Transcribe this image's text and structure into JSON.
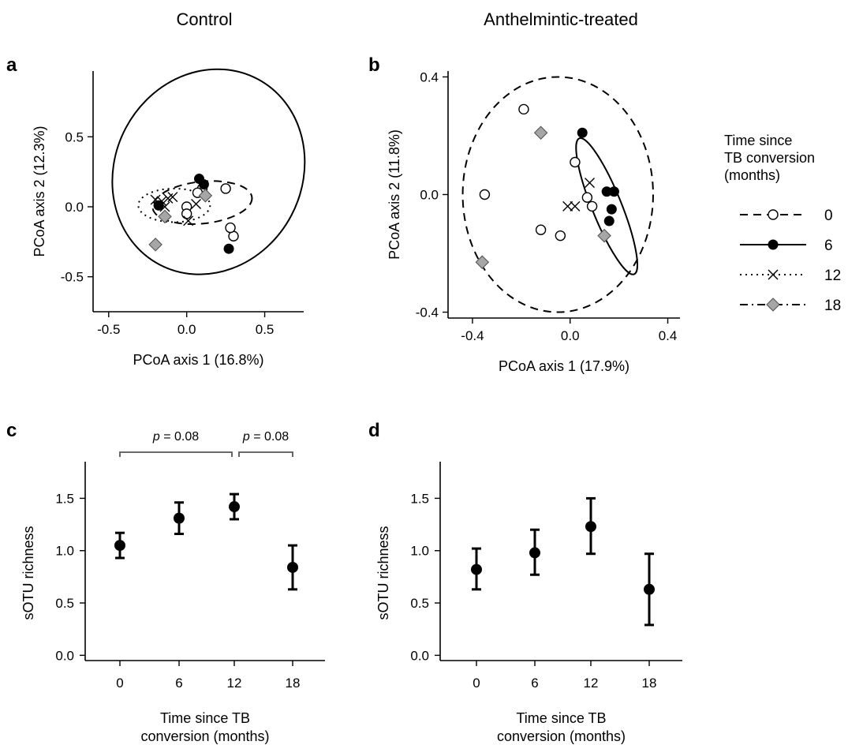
{
  "column_titles": [
    "Control",
    "Anthelmintic-treated"
  ],
  "legend": {
    "title_lines": [
      "Time since",
      "TB conversion",
      "(months)"
    ],
    "entries": [
      {
        "label": "0",
        "marker": "open-circle",
        "line": "dashed"
      },
      {
        "label": "6",
        "marker": "filled-circle",
        "line": "solid"
      },
      {
        "label": "12",
        "marker": "cross",
        "line": "dotted"
      },
      {
        "label": "18",
        "marker": "gray-diamond",
        "line": "dash-dot"
      }
    ]
  },
  "colors": {
    "ink": "#000000",
    "diamond_fill": "#a6a6a6",
    "diamond_stroke": "#555555",
    "open_fill": "#ffffff",
    "bracket": "#555555"
  },
  "chart_data": [
    {
      "panel": "a",
      "type": "scatter",
      "xlabel": "PCoA axis 1 (16.8%)",
      "ylabel": "PCoA axis 2 (12.3%)",
      "xlim": [
        -0.6,
        0.75
      ],
      "ylim": [
        -0.75,
        0.97
      ],
      "xticks": [
        -0.5,
        0.0,
        0.5
      ],
      "xtick_labels": [
        "-0.5",
        "0.0",
        "0.5"
      ],
      "yticks": [
        -0.5,
        0.0,
        0.5
      ],
      "ytick_labels": [
        "-0.5",
        "0.0",
        "0.5"
      ],
      "series": [
        {
          "name": "0",
          "marker": "open-circle",
          "points": [
            [
              0.25,
              0.13
            ],
            [
              0.1,
              0.13
            ],
            [
              0.07,
              0.1
            ],
            [
              0.0,
              0.0
            ],
            [
              0.0,
              -0.05
            ],
            [
              0.3,
              -0.21
            ],
            [
              0.28,
              -0.15
            ]
          ]
        },
        {
          "name": "6",
          "marker": "filled-circle",
          "points": [
            [
              0.08,
              0.2
            ],
            [
              0.11,
              0.16
            ],
            [
              -0.18,
              0.01
            ],
            [
              0.27,
              -0.3
            ]
          ]
        },
        {
          "name": "12",
          "marker": "cross",
          "points": [
            [
              -0.2,
              0.05
            ],
            [
              -0.16,
              0.04
            ],
            [
              -0.12,
              0.06
            ],
            [
              -0.09,
              0.07
            ],
            [
              -0.14,
              0.0
            ],
            [
              0.06,
              0.02
            ],
            [
              0.01,
              -0.1
            ]
          ]
        },
        {
          "name": "18",
          "marker": "gray-diamond",
          "points": [
            [
              0.12,
              0.08
            ],
            [
              -0.14,
              -0.07
            ],
            [
              -0.2,
              -0.27
            ]
          ]
        }
      ],
      "ellipses": [
        {
          "name": "0",
          "line": "dashed",
          "center": [
            0.1,
            0.03
          ],
          "rx": 0.32,
          "ry": 0.15,
          "angle_deg": -6
        },
        {
          "name": "6",
          "line": "solid",
          "center": [
            0.14,
            0.25
          ],
          "rx": 0.6,
          "ry": 0.75,
          "angle_deg": 28
        },
        {
          "name": "12",
          "line": "dotted",
          "center": [
            -0.08,
            0.01
          ],
          "rx": 0.23,
          "ry": 0.12,
          "angle_deg": 0
        },
        {
          "name": "18",
          "line": "dash-dot",
          "center": [
            0.0,
            0.0
          ],
          "rx": 0.0,
          "ry": 0.0,
          "angle_deg": 0,
          "drawn": false
        }
      ]
    },
    {
      "panel": "b",
      "type": "scatter",
      "xlabel": "PCoA axis 1 (17.9%)",
      "ylabel": "PCoA axis 2 (11.8%)",
      "xlim": [
        -0.5,
        0.45
      ],
      "ylim": [
        -0.42,
        0.42
      ],
      "xticks": [
        -0.4,
        0.0,
        0.4
      ],
      "xtick_labels": [
        "-0.4",
        "0.0",
        "0.4"
      ],
      "yticks": [
        -0.4,
        0.0,
        0.4
      ],
      "ytick_labels": [
        "-0.4",
        "0.0",
        "0.4"
      ],
      "series": [
        {
          "name": "0",
          "marker": "open-circle",
          "points": [
            [
              -0.19,
              0.29
            ],
            [
              -0.35,
              0.0
            ],
            [
              0.02,
              0.11
            ],
            [
              0.07,
              -0.01
            ],
            [
              0.09,
              -0.04
            ],
            [
              -0.12,
              -0.12
            ],
            [
              -0.04,
              -0.14
            ]
          ]
        },
        {
          "name": "6",
          "marker": "filled-circle",
          "points": [
            [
              0.05,
              0.21
            ],
            [
              0.15,
              0.01
            ],
            [
              0.18,
              0.01
            ],
            [
              0.17,
              -0.05
            ],
            [
              0.16,
              -0.09
            ]
          ]
        },
        {
          "name": "12",
          "marker": "cross",
          "points": [
            [
              0.08,
              0.04
            ],
            [
              -0.01,
              -0.04
            ],
            [
              0.02,
              -0.04
            ]
          ]
        },
        {
          "name": "18",
          "marker": "gray-diamond",
          "points": [
            [
              -0.12,
              0.21
            ],
            [
              0.14,
              -0.14
            ],
            [
              -0.36,
              -0.23
            ]
          ]
        }
      ],
      "ellipses": [
        {
          "name": "0",
          "line": "dashed",
          "center": [
            -0.05,
            0.0
          ],
          "rx": 0.39,
          "ry": 0.4,
          "angle_deg": 0
        },
        {
          "name": "6",
          "line": "solid",
          "center": [
            0.15,
            -0.04
          ],
          "rx": 0.3,
          "ry": 0.05,
          "angle_deg": 68
        }
      ]
    },
    {
      "panel": "c",
      "type": "scatter",
      "subtype": "errorbar",
      "xlabel_lines": [
        "Time since TB",
        "conversion (months)"
      ],
      "ylabel": "sOTU richness",
      "categories": [
        "0",
        "6",
        "12",
        "18"
      ],
      "values": [
        1.05,
        1.31,
        1.42,
        0.84
      ],
      "lower": [
        0.93,
        1.16,
        1.3,
        0.63
      ],
      "upper": [
        1.17,
        1.46,
        1.54,
        1.05
      ],
      "ylim": [
        -0.05,
        1.85
      ],
      "yticks": [
        0.0,
        0.5,
        1.0,
        1.5
      ],
      "ytick_labels": [
        "0.0",
        "0.5",
        "1.0",
        "1.5"
      ],
      "annotations": [
        {
          "from": "0",
          "to": "12",
          "p_label": "p",
          "p_text": " = 0.08"
        },
        {
          "from": "12",
          "to": "18",
          "p_label": "p",
          "p_text": " = 0.08"
        }
      ]
    },
    {
      "panel": "d",
      "type": "scatter",
      "subtype": "errorbar",
      "xlabel_lines": [
        "Time since TB",
        "conversion (months)"
      ],
      "ylabel": "sOTU richness",
      "categories": [
        "0",
        "6",
        "12",
        "18"
      ],
      "values": [
        0.82,
        0.98,
        1.23,
        0.63
      ],
      "lower": [
        0.63,
        0.77,
        0.97,
        0.29
      ],
      "upper": [
        1.02,
        1.2,
        1.5,
        0.97
      ],
      "ylim": [
        -0.05,
        1.85
      ],
      "yticks": [
        0.0,
        0.5,
        1.0,
        1.5
      ],
      "ytick_labels": [
        "0.0",
        "0.5",
        "1.0",
        "1.5"
      ],
      "annotations": []
    }
  ]
}
